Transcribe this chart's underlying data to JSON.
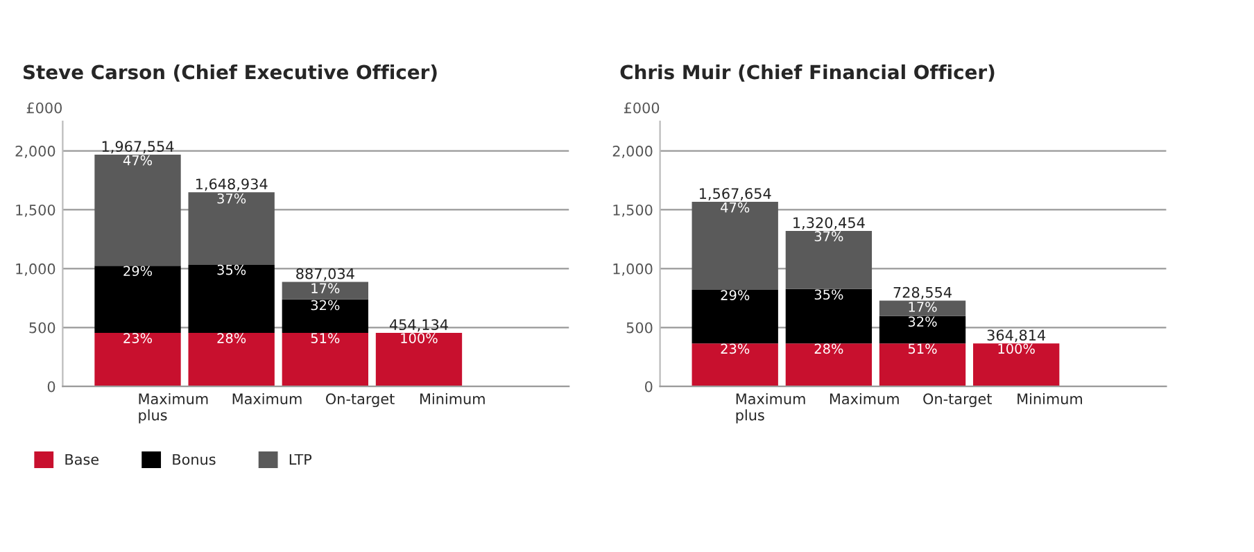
{
  "chart_data": [
    {
      "type": "bar",
      "stacked": true,
      "title": "Steve Carson (Chief Executive Officer)",
      "ylabel": "£000",
      "categories": [
        "Maximum\nplus",
        "Maximum",
        "On-target",
        "Minimum"
      ],
      "series": [
        {
          "name": "Base",
          "color": "#c8102e",
          "values": [
            454.134,
            454.134,
            454.134,
            454.134
          ]
        },
        {
          "name": "Bonus",
          "color": "#000000",
          "values": [
            570,
            577,
            284,
            null
          ]
        },
        {
          "name": "LTP",
          "color": "#5a5a5a",
          "values": [
            943.42,
            617.8,
            148.9,
            null
          ]
        }
      ],
      "annotations": [
        {
          "text": "1,967,554",
          "x": "Maximum\nplus",
          "y": 1967.554
        },
        {
          "text": "1,648,934",
          "x": "Maximum",
          "y": 1648.934
        },
        {
          "text": "887,034",
          "x": "On-target",
          "y": 887.034
        },
        {
          "text": "454,134",
          "x": "Minimum",
          "y": 454.134
        },
        {
          "text": "23%",
          "x": "Maximum\nplus",
          "y": 400
        },
        {
          "text": "28%",
          "x": "Maximum",
          "y": 400
        },
        {
          "text": "51%",
          "x": "On-target",
          "y": 400
        },
        {
          "text": "100%",
          "x": "Minimum",
          "y": 400
        },
        {
          "text": "29%",
          "x": "Maximum\nplus",
          "y": 970
        },
        {
          "text": "35%",
          "x": "Maximum",
          "y": 980
        },
        {
          "text": "32%",
          "x": "On-target",
          "y": 680
        },
        {
          "text": "47%",
          "x": "Maximum\nplus",
          "y": 1910
        },
        {
          "text": "37%",
          "x": "Maximum",
          "y": 1648.934
        },
        {
          "text": "17%",
          "x": "On-target",
          "y": 887.034
        }
      ],
      "ylim": [
        0,
        2250
      ],
      "yticks": [
        0,
        500,
        {
          "value": 1000,
          "label": "1,000"
        },
        {
          "value": 1500,
          "label": "1,500"
        },
        {
          "value": 2000,
          "label": "2,000"
        }
      ],
      "grid": "y",
      "legend": "bottom left"
    },
    {
      "type": "bar",
      "stacked": true,
      "title": "Chris Muir (Chief Financial Officer)",
      "ylabel": "£000",
      "categories": [
        "Maximum\nplus",
        "Maximum",
        "On-target",
        "Minimum"
      ],
      "series": [
        {
          "color": "#c8102e",
          "values": [
            364.814,
            364.814,
            364.814,
            364.814
          ]
        },
        {
          "color": "#000000",
          "values": [
            455,
            462,
            233,
            null
          ]
        },
        {
          "color": "#5a5a5a",
          "values": [
            747.84,
            493.64,
            130.74,
            null
          ]
        }
      ],
      "annotations": [
        {
          "text": "1,567,654",
          "x": "Maximum\nplus",
          "y": 1567.654
        },
        {
          "text": "1,320,454",
          "x": "Maximum",
          "y": 1320.454
        },
        {
          "text": "728,554",
          "x": "On-target",
          "y": 728.554
        },
        {
          "text": "364,814",
          "x": "Minimum",
          "y": 364.814
        },
        {
          "text": "23%",
          "x": "Maximum\nplus",
          "y": 310
        },
        {
          "text": "28%",
          "x": "Maximum",
          "y": 310
        },
        {
          "text": "51%",
          "x": "On-target",
          "y": 310
        },
        {
          "text": "100%",
          "x": "Minimum",
          "y": 310
        },
        {
          "text": "29%",
          "x": "Maximum\nplus",
          "y": 765
        },
        {
          "text": "35%",
          "x": "Maximum",
          "y": 770
        },
        {
          "text": "32%",
          "x": "On-target",
          "y": 540
        },
        {
          "text": "47%",
          "x": "Maximum\nplus",
          "y": 1510
        },
        {
          "text": "37%",
          "x": "Maximum",
          "y": 1265
        },
        {
          "text": "17%",
          "x": "On-target",
          "y": 728.554
        }
      ],
      "ylim": [
        0,
        2250
      ],
      "yticks": [
        0,
        500,
        {
          "value": 1000,
          "label": "1,000"
        },
        {
          "value": 1500,
          "label": "1,500"
        },
        {
          "value": 2000,
          "label": "2,000"
        }
      ],
      "grid": "y"
    }
  ]
}
